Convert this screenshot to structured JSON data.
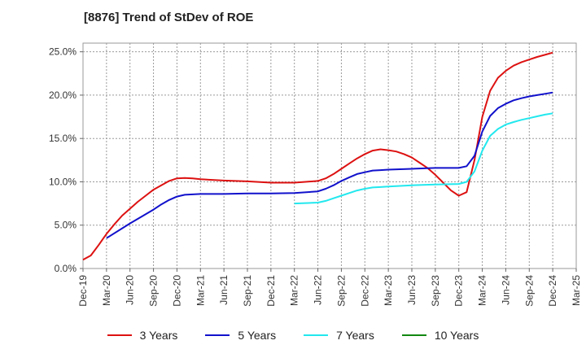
{
  "chart_data": {
    "type": "line",
    "title": "[8876]  Trend of StDev of ROE",
    "xlabel": "",
    "ylabel": "",
    "x_ticks": [
      "Dec-19",
      "Mar-20",
      "Jun-20",
      "Sep-20",
      "Dec-20",
      "Mar-21",
      "Jun-21",
      "Sep-21",
      "Dec-21",
      "Mar-22",
      "Jun-22",
      "Sep-22",
      "Dec-22",
      "Mar-23",
      "Jun-23",
      "Sep-23",
      "Dec-23",
      "Mar-24",
      "Jun-24",
      "Sep-24",
      "Dec-24",
      "Mar-25"
    ],
    "y_ticks": [
      "0.0%",
      "5.0%",
      "10.0%",
      "15.0%",
      "20.0%",
      "25.0%"
    ],
    "ylim": [
      0,
      26
    ],
    "grid": true,
    "legend_position": "bottom",
    "series": [
      {
        "name": "3 Years",
        "color": "#dd1111",
        "x": [
          "Dec-19",
          "Jan-20",
          "Feb-20",
          "Mar-20",
          "Apr-20",
          "May-20",
          "Jun-20",
          "Jul-20",
          "Aug-20",
          "Sep-20",
          "Oct-20",
          "Nov-20",
          "Dec-20",
          "Jan-21",
          "Feb-21",
          "Mar-21",
          "Jun-21",
          "Sep-21",
          "Dec-21",
          "Mar-22",
          "Jun-22",
          "Jul-22",
          "Aug-22",
          "Sep-22",
          "Oct-22",
          "Nov-22",
          "Dec-22",
          "Jan-23",
          "Feb-23",
          "Mar-23",
          "Apr-23",
          "May-23",
          "Jun-23",
          "Jul-23",
          "Aug-23",
          "Sep-23",
          "Oct-23",
          "Nov-23",
          "Dec-23",
          "Jan-24",
          "Feb-24",
          "Mar-24",
          "Apr-24",
          "May-24",
          "Jun-24",
          "Jul-24",
          "Aug-24",
          "Sep-24",
          "Oct-24",
          "Nov-24",
          "Dec-24"
        ],
        "values": [
          1.0,
          1.5,
          2.7,
          4.0,
          5.1,
          6.1,
          6.9,
          7.7,
          8.4,
          9.1,
          9.6,
          10.1,
          10.4,
          10.45,
          10.4,
          10.3,
          10.15,
          10.05,
          9.9,
          9.9,
          10.1,
          10.4,
          10.9,
          11.5,
          12.1,
          12.7,
          13.2,
          13.6,
          13.75,
          13.65,
          13.5,
          13.2,
          12.8,
          12.2,
          11.6,
          10.8,
          9.9,
          9.0,
          8.4,
          8.8,
          12.5,
          17.5,
          20.5,
          22.0,
          22.8,
          23.4,
          23.8,
          24.1,
          24.4,
          24.65,
          24.9
        ]
      },
      {
        "name": "5 Years",
        "color": "#1111cc",
        "x": [
          "Mar-20",
          "Jun-20",
          "Sep-20",
          "Oct-20",
          "Nov-20",
          "Dec-20",
          "Jan-21",
          "Mar-21",
          "Jun-21",
          "Sep-21",
          "Dec-21",
          "Mar-22",
          "Jun-22",
          "Jul-22",
          "Aug-22",
          "Sep-22",
          "Oct-22",
          "Nov-22",
          "Dec-22",
          "Jan-23",
          "Feb-23",
          "Mar-23",
          "Jun-23",
          "Sep-23",
          "Dec-23",
          "Jan-24",
          "Feb-24",
          "Mar-24",
          "Apr-24",
          "May-24",
          "Jun-24",
          "Jul-24",
          "Aug-24",
          "Sep-24",
          "Oct-24",
          "Nov-24",
          "Dec-24"
        ],
        "values": [
          3.5,
          5.2,
          6.8,
          7.4,
          7.9,
          8.3,
          8.5,
          8.6,
          8.6,
          8.65,
          8.65,
          8.7,
          8.9,
          9.2,
          9.6,
          10.1,
          10.5,
          10.9,
          11.1,
          11.3,
          11.35,
          11.4,
          11.5,
          11.6,
          11.6,
          11.8,
          13.0,
          15.8,
          17.6,
          18.5,
          19.0,
          19.4,
          19.65,
          19.85,
          20.0,
          20.15,
          20.3
        ]
      },
      {
        "name": "7 Years",
        "color": "#22e8ee",
        "x": [
          "Mar-22",
          "Jun-22",
          "Jul-22",
          "Aug-22",
          "Sep-22",
          "Oct-22",
          "Nov-22",
          "Dec-22",
          "Jan-23",
          "Feb-23",
          "Mar-23",
          "Jun-23",
          "Sep-23",
          "Dec-23",
          "Jan-24",
          "Feb-24",
          "Mar-24",
          "Apr-24",
          "May-24",
          "Jun-24",
          "Jul-24",
          "Aug-24",
          "Sep-24",
          "Oct-24",
          "Nov-24",
          "Dec-24"
        ],
        "values": [
          7.5,
          7.6,
          7.8,
          8.1,
          8.4,
          8.7,
          9.0,
          9.2,
          9.35,
          9.4,
          9.45,
          9.6,
          9.7,
          9.75,
          10.0,
          11.2,
          13.6,
          15.3,
          16.1,
          16.6,
          16.9,
          17.15,
          17.35,
          17.55,
          17.75,
          17.9
        ]
      },
      {
        "name": "10 Years",
        "color": "#118811",
        "x": [],
        "values": []
      }
    ]
  }
}
